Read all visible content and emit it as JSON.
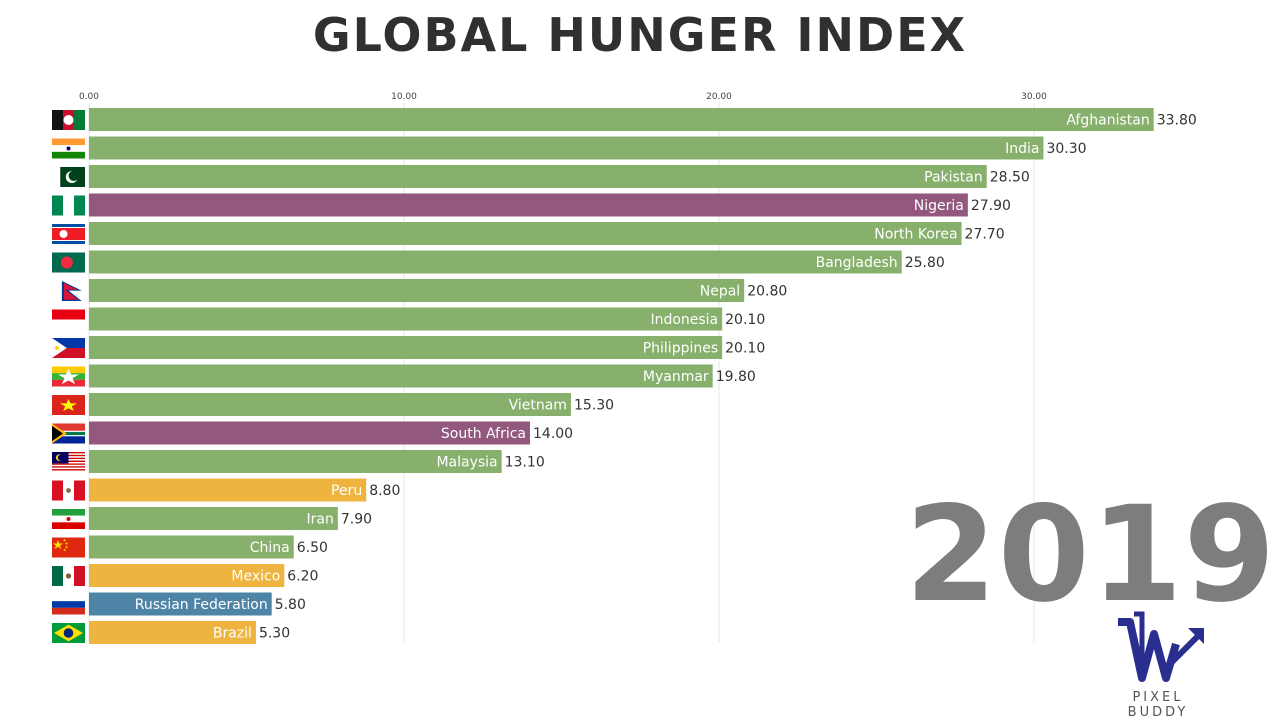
{
  "title": "GLOBAL HUNGER INDEX",
  "year": "2019",
  "brand": {
    "name": "PIXEL BUDDY",
    "logo_icon": "pixel-buddy-logo-icon"
  },
  "colors": {
    "asia": "#86b06c",
    "africa": "#93587e",
    "americas": "#efb33f",
    "europe": "#4e84a6",
    "grid": "#e6e6e6",
    "bar_text": "#ffffff",
    "value_text": "#333333"
  },
  "chart_data": {
    "type": "bar",
    "orientation": "horizontal",
    "title": "GLOBAL HUNGER INDEX",
    "xlim": [
      0,
      34
    ],
    "ticks": [
      0,
      10,
      20,
      30
    ],
    "tick_labels": [
      "0.00",
      "10.00",
      "20.00",
      "30.00"
    ],
    "grid": true,
    "categories": [
      "Afghanistan",
      "India",
      "Pakistan",
      "Nigeria",
      "North Korea",
      "Bangladesh",
      "Nepal",
      "Indonesia",
      "Philippines",
      "Myanmar",
      "Vietnam",
      "South Africa",
      "Malaysia",
      "Peru",
      "Iran",
      "China",
      "Mexico",
      "Russian Federation",
      "Brazil"
    ],
    "values": [
      33.8,
      30.3,
      28.5,
      27.9,
      27.7,
      25.8,
      20.8,
      20.1,
      20.1,
      19.8,
      15.3,
      14.0,
      13.1,
      8.8,
      7.9,
      6.5,
      6.2,
      5.8,
      5.3
    ],
    "value_labels": [
      "33.80",
      "30.30",
      "28.50",
      "27.90",
      "27.70",
      "25.80",
      "20.80",
      "20.10",
      "20.10",
      "19.80",
      "15.30",
      "14.00",
      "13.10",
      "8.80",
      "7.90",
      "6.50",
      "6.20",
      "5.80",
      "5.30"
    ],
    "regions": [
      "asia",
      "asia",
      "asia",
      "africa",
      "asia",
      "asia",
      "asia",
      "asia",
      "asia",
      "asia",
      "asia",
      "africa",
      "asia",
      "americas",
      "asia",
      "asia",
      "americas",
      "europe",
      "americas"
    ],
    "flag_icons": [
      "afghanistan-flag-icon",
      "india-flag-icon",
      "pakistan-flag-icon",
      "nigeria-flag-icon",
      "north-korea-flag-icon",
      "bangladesh-flag-icon",
      "nepal-flag-icon",
      "indonesia-flag-icon",
      "philippines-flag-icon",
      "myanmar-flag-icon",
      "vietnam-flag-icon",
      "south-africa-flag-icon",
      "malaysia-flag-icon",
      "peru-flag-icon",
      "iran-flag-icon",
      "china-flag-icon",
      "mexico-flag-icon",
      "russia-flag-icon",
      "brazil-flag-icon"
    ]
  }
}
